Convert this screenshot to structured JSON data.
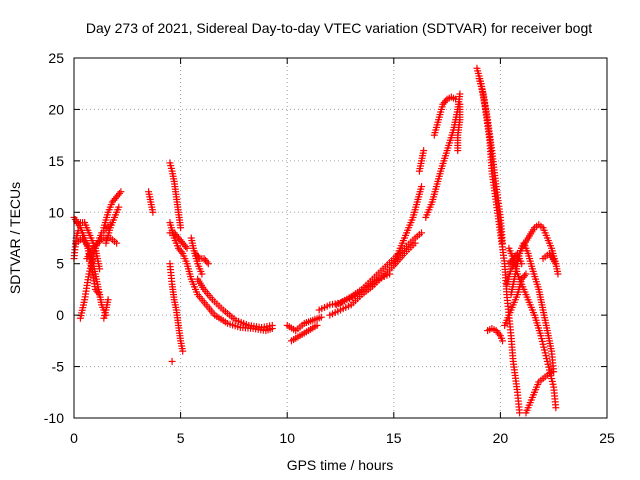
{
  "chart_data": {
    "type": "scatter",
    "title": "Day 273 of 2021, Sidereal Day-to-day VTEC variation (SDTVAR) for receiver bogt",
    "xlabel": "GPS time / hours",
    "ylabel": "SDTVAR / TECUs",
    "xlim": [
      0,
      25
    ],
    "ylim": [
      -10,
      25
    ],
    "xticks": [
      "0",
      "5",
      "10",
      "15",
      "20",
      "25"
    ],
    "yticks": [
      "-10",
      "-5",
      "0",
      "5",
      "10",
      "15",
      "20",
      "25"
    ],
    "grid": true,
    "marker": "+",
    "colors": {
      "series": "#ff0000",
      "grid": "#a0a0a0",
      "axis": "#000000"
    },
    "tracks": [
      [
        [
          0.0,
          9.5
        ],
        [
          0.3,
          8.5
        ],
        [
          0.6,
          7.0
        ],
        [
          0.8,
          5.0
        ],
        [
          1.0,
          2.5
        ],
        [
          1.2,
          2.0
        ]
      ],
      [
        [
          0.1,
          7.0
        ],
        [
          0.4,
          7.5
        ],
        [
          0.7,
          6.5
        ],
        [
          0.9,
          5.0
        ],
        [
          1.1,
          3.0
        ],
        [
          1.3,
          1.0
        ],
        [
          1.5,
          0.0
        ]
      ],
      [
        [
          0.3,
          -0.3
        ],
        [
          0.5,
          1.5
        ],
        [
          0.7,
          4.0
        ],
        [
          1.0,
          6.5
        ],
        [
          1.3,
          8.0
        ],
        [
          1.7,
          8.8
        ]
      ],
      [
        [
          0.2,
          9.0
        ],
        [
          0.5,
          9.0
        ],
        [
          0.8,
          7.5
        ],
        [
          1.0,
          6.5
        ],
        [
          1.2,
          4.5
        ]
      ],
      [
        [
          0.6,
          5.5
        ],
        [
          0.9,
          6.5
        ],
        [
          1.1,
          7.0
        ],
        [
          1.4,
          7.5
        ],
        [
          1.7,
          7.5
        ],
        [
          2.0,
          7.0
        ]
      ],
      [
        [
          1.4,
          8.5
        ],
        [
          1.6,
          10.0
        ],
        [
          1.8,
          11.0
        ],
        [
          2.0,
          11.5
        ],
        [
          2.2,
          12.0
        ]
      ],
      [
        [
          1.5,
          7.0
        ],
        [
          1.7,
          8.5
        ],
        [
          1.9,
          9.5
        ],
        [
          2.1,
          10.5
        ]
      ],
      [
        [
          1.4,
          -0.3
        ],
        [
          1.5,
          0.5
        ],
        [
          1.6,
          1.5
        ]
      ],
      [
        [
          0.0,
          5.5
        ],
        [
          0.1,
          7.5
        ],
        [
          0.2,
          8.2
        ]
      ],
      [
        [
          3.5,
          12.0
        ],
        [
          3.6,
          11.0
        ],
        [
          3.7,
          10.0
        ]
      ],
      [
        [
          4.5,
          14.8
        ],
        [
          4.6,
          14.0
        ],
        [
          4.7,
          13.0
        ],
        [
          4.8,
          11.5
        ],
        [
          4.9,
          10.0
        ],
        [
          5.0,
          8.5
        ]
      ],
      [
        [
          4.5,
          9.0
        ],
        [
          4.7,
          7.5
        ],
        [
          4.9,
          6.5
        ],
        [
          5.1,
          6.0
        ],
        [
          5.3,
          5.0
        ],
        [
          5.5,
          3.5
        ],
        [
          5.8,
          2.0
        ],
        [
          6.2,
          1.0
        ],
        [
          6.6,
          0.0
        ],
        [
          7.2,
          -0.8
        ],
        [
          7.8,
          -1.2
        ],
        [
          8.4,
          -1.3
        ],
        [
          9.0,
          -1.5
        ],
        [
          9.3,
          -1.3
        ]
      ],
      [
        [
          4.5,
          5.0
        ],
        [
          4.6,
          3.0
        ],
        [
          4.7,
          1.5
        ],
        [
          4.8,
          0.5
        ],
        [
          4.9,
          -1.0
        ],
        [
          5.0,
          -2.5
        ],
        [
          5.1,
          -3.5
        ]
      ],
      [
        [
          4.6,
          -4.5
        ]
      ],
      [
        [
          4.5,
          8.0
        ],
        [
          4.7,
          8.0
        ],
        [
          4.9,
          7.5
        ],
        [
          5.1,
          7.0
        ],
        [
          5.3,
          6.5
        ]
      ],
      [
        [
          5.7,
          6.0
        ],
        [
          5.9,
          5.5
        ],
        [
          6.1,
          5.5
        ],
        [
          6.3,
          5.0
        ]
      ],
      [
        [
          5.8,
          3.5
        ],
        [
          6.1,
          2.5
        ],
        [
          6.5,
          1.5
        ],
        [
          7.0,
          0.5
        ],
        [
          7.6,
          -0.5
        ],
        [
          8.2,
          -1.0
        ],
        [
          8.8,
          -1.2
        ],
        [
          9.3,
          -1.0
        ]
      ],
      [
        [
          5.5,
          7.5
        ],
        [
          5.6,
          6.5
        ],
        [
          5.8,
          5.0
        ],
        [
          6.0,
          4.0
        ]
      ],
      [
        [
          10.0,
          -1.0
        ],
        [
          10.4,
          -1.5
        ],
        [
          10.8,
          -0.8
        ],
        [
          11.2,
          -0.5
        ],
        [
          11.6,
          -0.2
        ]
      ],
      [
        [
          10.2,
          -2.5
        ],
        [
          10.6,
          -2.0
        ],
        [
          11.0,
          -1.5
        ],
        [
          11.4,
          -1.0
        ]
      ],
      [
        [
          11.5,
          0.5
        ],
        [
          12.0,
          1.0
        ],
        [
          12.5,
          1.2
        ],
        [
          13.0,
          1.8
        ],
        [
          13.5,
          2.5
        ],
        [
          14.0,
          3.5
        ],
        [
          14.5,
          4.5
        ],
        [
          15.0,
          5.5
        ],
        [
          15.5,
          6.5
        ],
        [
          16.0,
          7.5
        ],
        [
          16.3,
          8.0
        ]
      ],
      [
        [
          12.0,
          0.0
        ],
        [
          12.5,
          0.5
        ],
        [
          13.0,
          1.0
        ],
        [
          13.5,
          2.0
        ],
        [
          14.0,
          2.8
        ],
        [
          14.5,
          3.8
        ],
        [
          15.0,
          4.8
        ],
        [
          15.5,
          6.0
        ],
        [
          16.0,
          7.0
        ]
      ],
      [
        [
          12.3,
          1.0
        ],
        [
          12.8,
          1.5
        ],
        [
          13.3,
          2.0
        ],
        [
          13.8,
          2.8
        ],
        [
          14.3,
          3.5
        ],
        [
          14.8,
          4.0
        ]
      ],
      [
        [
          15.0,
          5.0
        ],
        [
          15.3,
          6.5
        ],
        [
          15.6,
          8.0
        ],
        [
          15.9,
          9.5
        ],
        [
          16.1,
          11.0
        ],
        [
          16.3,
          12.5
        ]
      ],
      [
        [
          16.5,
          9.5
        ],
        [
          16.8,
          11.0
        ],
        [
          17.0,
          12.5
        ],
        [
          17.2,
          14.0
        ],
        [
          17.5,
          16.0
        ],
        [
          17.8,
          18.0
        ],
        [
          18.0,
          20.0
        ],
        [
          18.1,
          21.5
        ]
      ],
      [
        [
          16.9,
          17.5
        ],
        [
          17.1,
          19.0
        ],
        [
          17.3,
          20.5
        ],
        [
          17.5,
          21.0
        ],
        [
          17.7,
          21.2
        ],
        [
          17.9,
          21.0
        ]
      ],
      [
        [
          18.0,
          16.0
        ],
        [
          18.0,
          17.5
        ],
        [
          18.1,
          19.0
        ],
        [
          18.1,
          20.5
        ]
      ],
      [
        [
          16.2,
          14.0
        ],
        [
          16.3,
          15.0
        ],
        [
          16.4,
          16.0
        ]
      ],
      [
        [
          18.9,
          24.0
        ],
        [
          19.1,
          22.5
        ],
        [
          19.3,
          20.0
        ],
        [
          19.5,
          17.0
        ],
        [
          19.6,
          14.0
        ],
        [
          19.8,
          11.0
        ],
        [
          20.0,
          8.0
        ],
        [
          20.2,
          5.0
        ],
        [
          20.3,
          2.0
        ],
        [
          20.4,
          0.0
        ],
        [
          20.5,
          -2.0
        ],
        [
          20.6,
          -4.5
        ],
        [
          20.8,
          -7.5
        ],
        [
          20.9,
          -9.5
        ]
      ],
      [
        [
          19.0,
          23.0
        ],
        [
          19.2,
          21.5
        ],
        [
          19.4,
          19.0
        ],
        [
          19.6,
          16.0
        ],
        [
          19.8,
          12.5
        ],
        [
          20.0,
          9.5
        ],
        [
          20.1,
          7.0
        ]
      ],
      [
        [
          19.4,
          -1.5
        ],
        [
          19.6,
          -1.3
        ],
        [
          19.8,
          -1.5
        ],
        [
          20.0,
          -2.0
        ],
        [
          20.1,
          -2.5
        ]
      ],
      [
        [
          20.3,
          3.0
        ],
        [
          20.5,
          4.5
        ],
        [
          20.8,
          5.5
        ],
        [
          21.0,
          6.5
        ],
        [
          21.3,
          7.5
        ],
        [
          21.6,
          8.5
        ],
        [
          21.8,
          8.8
        ],
        [
          22.0,
          8.5
        ],
        [
          22.2,
          7.5
        ],
        [
          22.4,
          6.5
        ],
        [
          22.6,
          5.0
        ],
        [
          22.7,
          4.0
        ]
      ],
      [
        [
          20.5,
          2.0
        ],
        [
          20.7,
          4.0
        ],
        [
          20.9,
          6.0
        ],
        [
          21.1,
          7.0
        ],
        [
          21.3,
          6.0
        ],
        [
          21.5,
          4.5
        ],
        [
          21.8,
          2.5
        ],
        [
          22.0,
          0.5
        ],
        [
          22.2,
          -1.5
        ],
        [
          22.4,
          -3.5
        ],
        [
          22.5,
          -5.5
        ]
      ],
      [
        [
          20.4,
          6.5
        ],
        [
          20.6,
          5.5
        ],
        [
          20.8,
          4.0
        ],
        [
          21.0,
          3.0
        ],
        [
          21.3,
          1.5
        ],
        [
          21.6,
          0.0
        ],
        [
          21.9,
          -2.0
        ],
        [
          22.2,
          -4.5
        ],
        [
          22.5,
          -7.0
        ],
        [
          22.6,
          -9.0
        ]
      ],
      [
        [
          20.2,
          -1.0
        ],
        [
          20.5,
          0.5
        ],
        [
          20.8,
          2.0
        ],
        [
          21.0,
          3.5
        ],
        [
          21.2,
          4.0
        ]
      ],
      [
        [
          21.2,
          -9.5
        ],
        [
          21.5,
          -8.0
        ],
        [
          21.8,
          -6.5
        ],
        [
          22.1,
          -6.0
        ],
        [
          22.4,
          -5.5
        ]
      ],
      [
        [
          20.4,
          5.0
        ],
        [
          20.6,
          5.5
        ],
        [
          20.8,
          6.0
        ],
        [
          21.0,
          5.0
        ]
      ],
      [
        [
          22.0,
          5.5
        ],
        [
          22.3,
          6.0
        ],
        [
          22.6,
          5.0
        ]
      ]
    ]
  }
}
